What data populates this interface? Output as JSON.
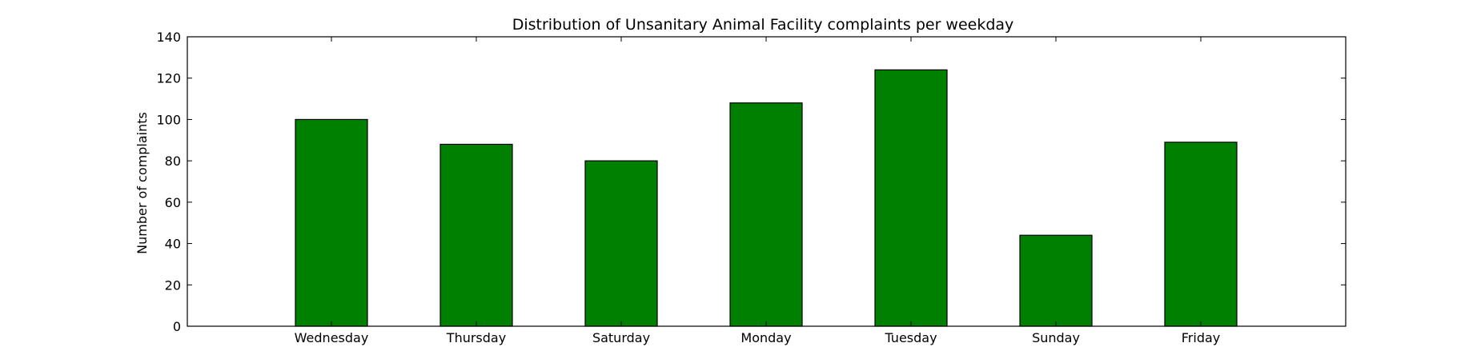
{
  "chart_data": {
    "type": "bar",
    "title": "Distribution of  Unsanitary Animal Facility complaints per weekday",
    "xlabel": "",
    "ylabel": "Number of complaints",
    "categories": [
      "Wednesday",
      "Thursday",
      "Saturday",
      "Monday",
      "Tuesday",
      "Sunday",
      "Friday"
    ],
    "values": [
      100,
      88,
      80,
      108,
      124,
      44,
      89
    ],
    "ylim": [
      0,
      140
    ],
    "yticks": [
      0,
      20,
      40,
      60,
      80,
      100,
      120,
      140
    ],
    "bar_color": "#008000",
    "edge_color": "#000000",
    "grid": false,
    "legend": "none"
  }
}
